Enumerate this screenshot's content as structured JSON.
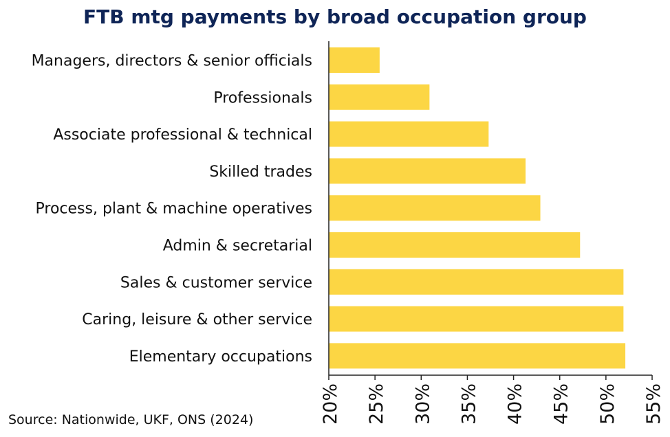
{
  "chart_data": {
    "type": "bar",
    "orientation": "horizontal",
    "title": "FTB mtg payments by broad occupation group",
    "categories": [
      "Managers, directors & senior officials",
      "Professionals",
      "Associate professional & technical",
      "Skilled trades",
      "Process, plant & machine operatives",
      "Admin & secretarial",
      "Sales & customer service",
      "Caring, leisure & other service",
      "Elementary occupations"
    ],
    "values": [
      25.5,
      30.9,
      37.3,
      41.3,
      42.9,
      47.2,
      51.9,
      51.9,
      52.1
    ],
    "value_unit": "%",
    "xlim": [
      20,
      55
    ],
    "xticks": [
      20,
      25,
      30,
      35,
      40,
      45,
      50,
      55
    ],
    "xtick_labels": [
      "20%",
      "25%",
      "30%",
      "35%",
      "40%",
      "45%",
      "50%",
      "55%"
    ],
    "xlabel": "",
    "ylabel": "",
    "grid": false,
    "legend": "none",
    "bar_color": "#fcd644",
    "title_color": "#0f2557"
  },
  "source": "Source: Nationwide, UKF, ONS (2024)"
}
